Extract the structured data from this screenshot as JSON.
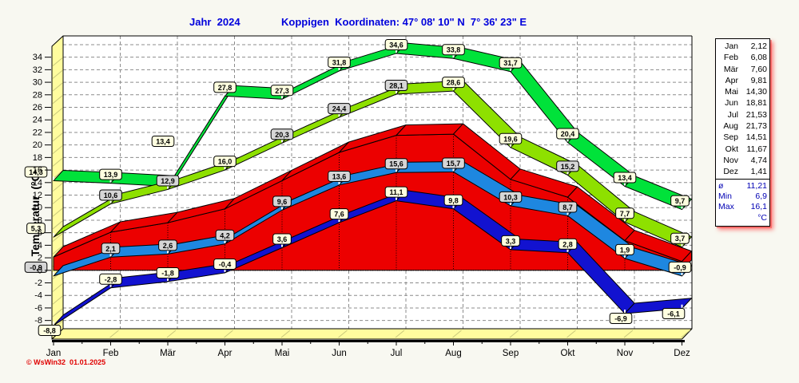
{
  "header": {
    "year": "Jahr  2024",
    "station": "Koppigen  Koordinaten: 47° 08' 10\" N  7° 36' 23\" E",
    "color": "#0000DC"
  },
  "axes": {
    "y_title": "Temperatur  (°C)",
    "y_ticks": [
      34,
      32,
      30,
      28,
      26,
      24,
      22,
      20,
      18,
      16,
      14,
      12,
      10,
      8,
      6,
      4,
      2,
      0,
      -2,
      -4,
      -6,
      -8
    ],
    "months": [
      "Jan",
      "Feb",
      "Mär",
      "Apr",
      "Mai",
      "Jun",
      "Jul",
      "Aug",
      "Sep",
      "Okt",
      "Nov",
      "Dez"
    ]
  },
  "copyright": {
    "text": "© WsWin32  01.01.2025"
  },
  "legend": {
    "months": [
      {
        "label": "Jan",
        "value": "2,12"
      },
      {
        "label": "Feb",
        "value": "6,08"
      },
      {
        "label": "Mär",
        "value": "7,60"
      },
      {
        "label": "Apr",
        "value": "9,81"
      },
      {
        "label": "Mai",
        "value": "14,30"
      },
      {
        "label": "Jun",
        "value": "18,81"
      },
      {
        "label": "Jul",
        "value": "21,53"
      },
      {
        "label": "Aug",
        "value": "21,73"
      },
      {
        "label": "Sep",
        "value": "14,51"
      },
      {
        "label": "Okt",
        "value": "11,67"
      },
      {
        "label": "Nov",
        "value": "4,74"
      },
      {
        "label": "Dez",
        "value": "1,41"
      }
    ],
    "summary": [
      {
        "label": "ø",
        "value": "11,21"
      },
      {
        "label": "Min",
        "value": "6,9"
      },
      {
        "label": "Max",
        "value": "16,1"
      },
      {
        "label": "",
        "value": "°C"
      }
    ]
  },
  "chart_data": {
    "type": "line",
    "title": "Jahr 2024",
    "subtitle": "Koppigen Koordinaten: 47° 08' 10\" N 7° 36' 23\" E",
    "x_categories": [
      "Jan",
      "Feb",
      "Mär",
      "Apr",
      "Mai",
      "Jun",
      "Jul",
      "Aug",
      "Sep",
      "Okt",
      "Nov",
      "Dez"
    ],
    "ylabel": "Temperatur (°C)",
    "ylim": [
      -9,
      37
    ],
    "baseline": 0,
    "grid": true,
    "legend_position": "right",
    "series": [
      {
        "key": "max",
        "style": "ribbon",
        "color": "#00E23A",
        "values": [
          14.3,
          13.9,
          13.4,
          27.8,
          27.3,
          31.8,
          34.6,
          33.8,
          31.7,
          20.4,
          13.4,
          9.7
        ],
        "labels": [
          "14,3",
          "13,9",
          "13,4",
          "27,8",
          "27,3",
          "31,8",
          "34,6",
          "33,8",
          "31,7",
          "20,4",
          "13,4",
          "9,7"
        ],
        "badge_bg": [
          "Y",
          "Y",
          "Y",
          "Y",
          "Y",
          "Y",
          "Y",
          "Y",
          "Y",
          "Y",
          "Y",
          "Y"
        ]
      },
      {
        "key": "avg_max",
        "style": "ribbon",
        "color": "#8EE000",
        "values": [
          5.3,
          10.6,
          12.9,
          16.0,
          20.3,
          24.4,
          28.1,
          28.6,
          19.6,
          15.2,
          7.7,
          3.7
        ],
        "labels": [
          "5,3",
          "10,6",
          "12,9",
          "16,0",
          "20,3",
          "24,4",
          "28,1",
          "28,6",
          "19,6",
          "15,2",
          "7,7",
          "3,7"
        ],
        "badge_bg": [
          "Y",
          "G",
          "G",
          "Y",
          "G",
          "G",
          "G",
          "Y",
          "Y",
          "G",
          "Y",
          "Y"
        ]
      },
      {
        "key": "mean",
        "style": "area",
        "color": "#EC0000",
        "values": [
          2.12,
          6.08,
          7.6,
          9.81,
          14.3,
          18.81,
          21.53,
          21.73,
          14.51,
          11.67,
          4.74,
          1.41
        ],
        "labels": [],
        "badge_bg": []
      },
      {
        "key": "avg_min",
        "style": "ribbon",
        "color": "#1E87E0",
        "values": [
          -0.9,
          2.1,
          2.6,
          4.2,
          9.6,
          13.6,
          15.6,
          15.7,
          10.3,
          8.7,
          1.9,
          -0.9
        ],
        "labels": [
          "-0,9",
          "2,1",
          "2,6",
          "4,2",
          "9,6",
          "13,6",
          "15,6",
          "15,7",
          "10,3",
          "8,7",
          "1,9",
          "-0,9"
        ],
        "badge_bg": [
          "G",
          "G",
          "G",
          "G",
          "G",
          "G",
          "G",
          "G",
          "G",
          "G",
          "Y",
          "Y"
        ]
      },
      {
        "key": "min",
        "style": "ribbon",
        "color": "#1212D0",
        "values": [
          -8.8,
          -2.8,
          -1.8,
          -0.4,
          3.6,
          7.6,
          11.1,
          9.8,
          3.3,
          2.8,
          -6.9,
          -6.1
        ],
        "labels": [
          "-8,8",
          "-2,8",
          "-1,8",
          "-0,4",
          "3,6",
          "7,6",
          "11,1",
          "9,8",
          "3,3",
          "2,8",
          "-6,9",
          "-6,1"
        ],
        "badge_bg": [
          "Y",
          "Y",
          "Y",
          "Y",
          "Y",
          "Y",
          "Y",
          "Y",
          "Y",
          "Y",
          "Y",
          "Y"
        ]
      }
    ]
  },
  "colors": {
    "background": "#F8F8F1",
    "plot_background": "#FFFFFF",
    "grid": "#8C8C8C",
    "wall": "#FFFC9E",
    "wall_hatch": "#C8C87C",
    "badge_yellow": "#FFFFE0",
    "badge_gray": "#D6D6D6",
    "legend_summary_text": "#0000B4",
    "copyright_text": "#E00000"
  }
}
